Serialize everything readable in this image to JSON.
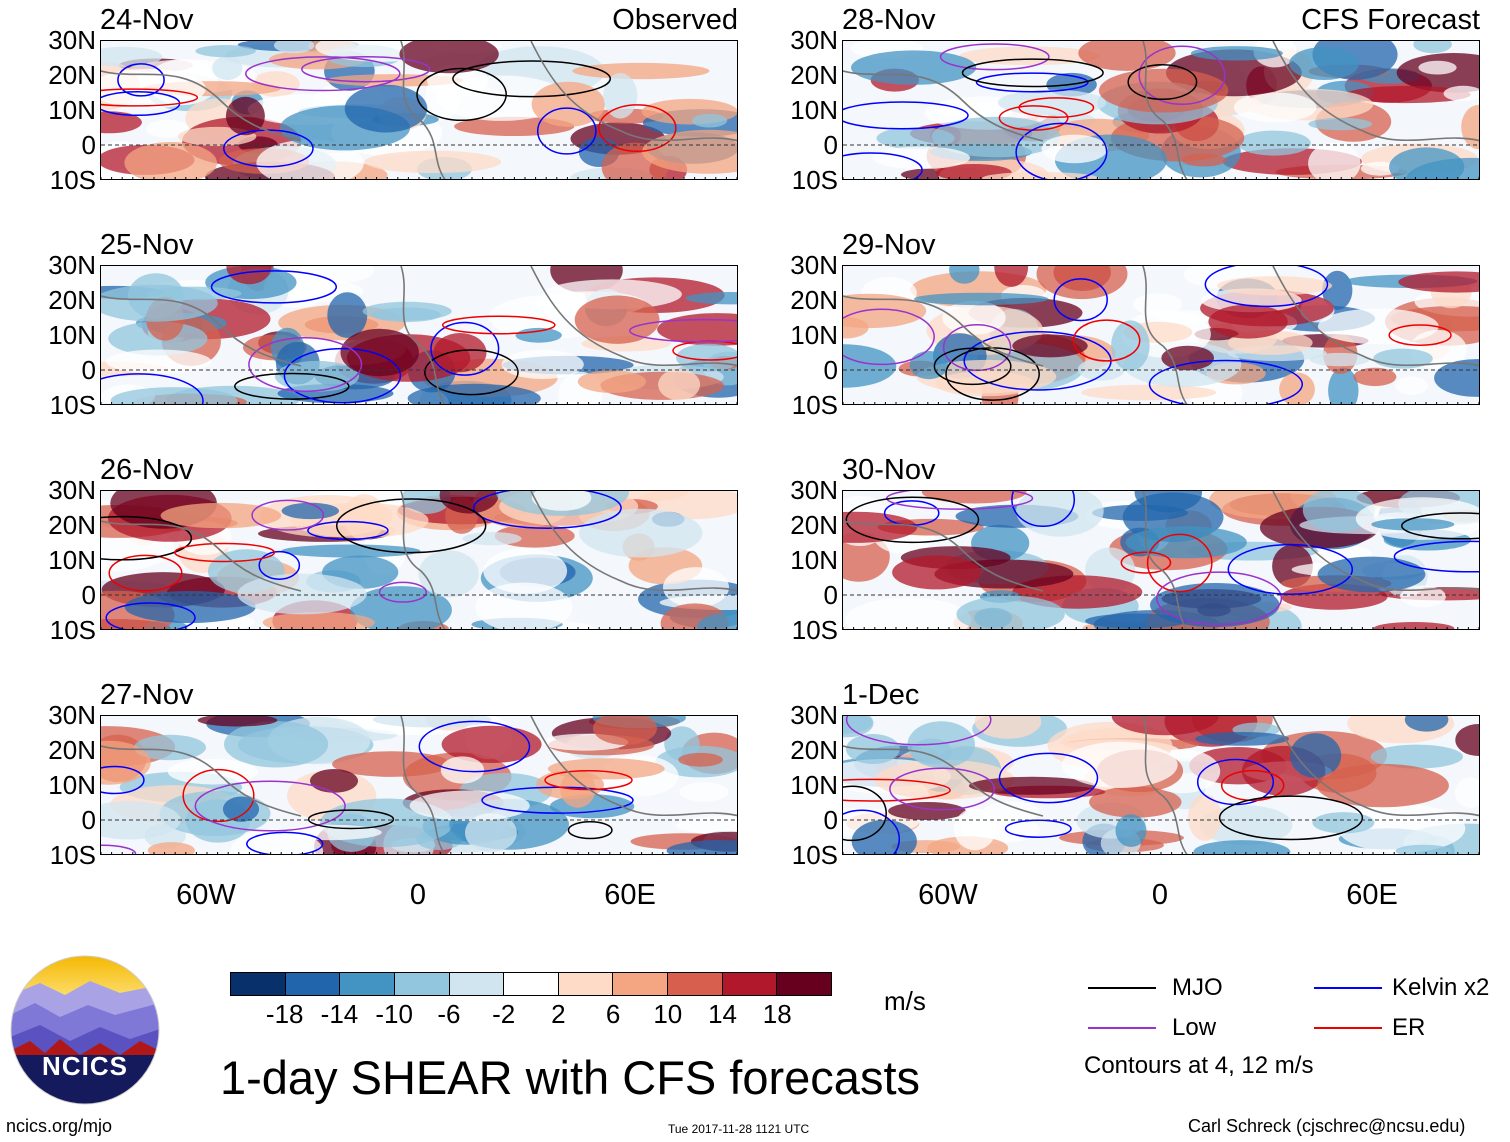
{
  "panels": [
    {
      "date": "24-Nov",
      "corner": "Observed"
    },
    {
      "date": "25-Nov",
      "corner": ""
    },
    {
      "date": "26-Nov",
      "corner": ""
    },
    {
      "date": "27-Nov",
      "corner": ""
    },
    {
      "date": "28-Nov",
      "corner": "CFS Forecast"
    },
    {
      "date": "29-Nov",
      "corner": ""
    },
    {
      "date": "30-Nov",
      "corner": ""
    },
    {
      "date": "1-Dec",
      "corner": ""
    }
  ],
  "lat_labels": [
    "30N",
    "20N",
    "10N",
    "0",
    "10S"
  ],
  "lon_labels": [
    "60W",
    "0",
    "60E"
  ],
  "colorbar": {
    "colors": [
      "#08306b",
      "#2166ac",
      "#4393c3",
      "#92c5de",
      "#d1e5f0",
      "#ffffff",
      "#fddbc7",
      "#f4a582",
      "#d6604d",
      "#b2182b",
      "#67001f"
    ],
    "labels": [
      "-18",
      "-14",
      "-10",
      "-6",
      "-2",
      "2",
      "6",
      "10",
      "14",
      "18"
    ],
    "units": "m/s"
  },
  "legend": {
    "mjo": {
      "label": "MJO",
      "color": "#000000"
    },
    "kelvin": {
      "label": "Kelvin x2",
      "color": "#0000ff"
    },
    "low": {
      "label": "Low",
      "color": "#9a32cd"
    },
    "er": {
      "label": "ER",
      "color": "#ee0000"
    },
    "contours": "Contours at 4, 12 m/s"
  },
  "logo_text": "NCICS",
  "title": "1-day SHEAR with CFS forecasts",
  "footer": {
    "url": "ncics.org/mjo",
    "timestamp": "Tue 2017-11-28 1121 UTC",
    "author": "Carl Schreck (cjschrec@ncsu.edu)"
  }
}
